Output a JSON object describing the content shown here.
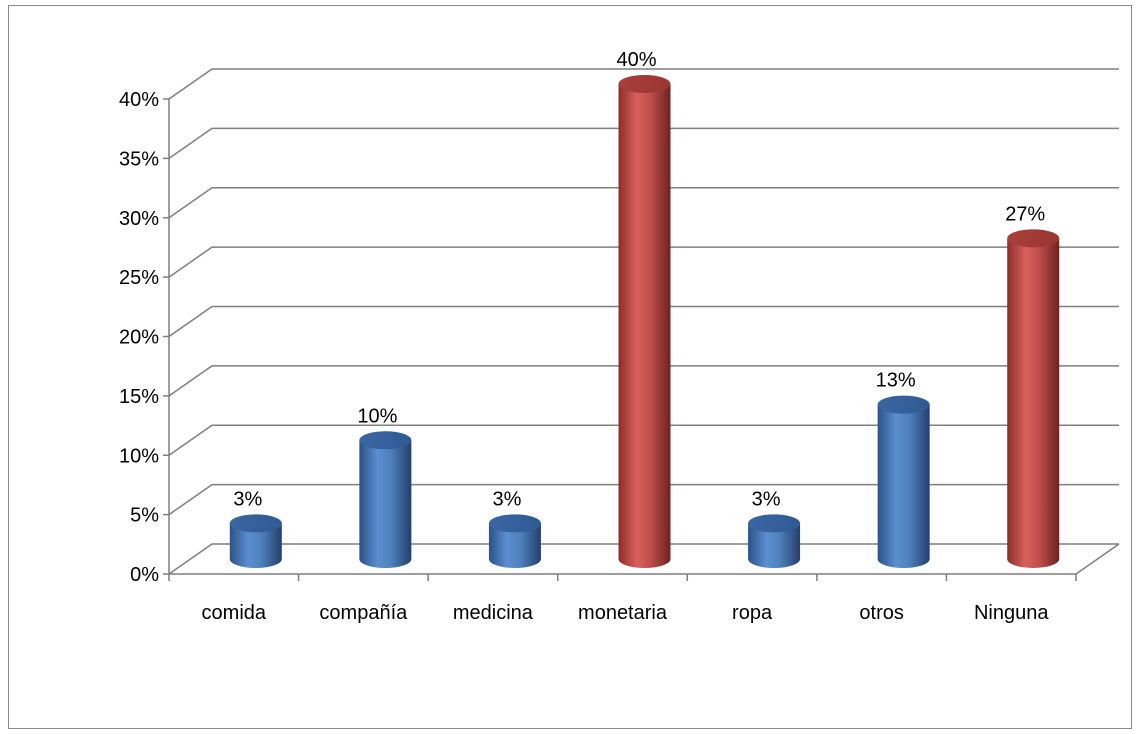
{
  "chart_data": {
    "type": "bar",
    "style": "3d-cylinder",
    "categories": [
      "comida",
      "compañía",
      "medicina",
      "monetaria",
      "ropa",
      "otros",
      "Ninguna"
    ],
    "values": [
      3,
      10,
      3,
      40,
      3,
      13,
      27
    ],
    "data_labels": [
      "3%",
      "10%",
      "3%",
      "40%",
      "3%",
      "13%",
      "27%"
    ],
    "y_tick_labels": [
      "0%",
      "5%",
      "10%",
      "15%",
      "20%",
      "25%",
      "30%",
      "35%",
      "40%"
    ],
    "ylim": [
      0,
      40
    ],
    "y_step": 5,
    "grid": true,
    "legend": "none",
    "title": "",
    "xlabel": "",
    "ylabel": "",
    "bar_colors": [
      "#4f81bd",
      "#4f81bd",
      "#4f81bd",
      "#c0504d",
      "#4f81bd",
      "#4f81bd",
      "#c0504d"
    ]
  }
}
